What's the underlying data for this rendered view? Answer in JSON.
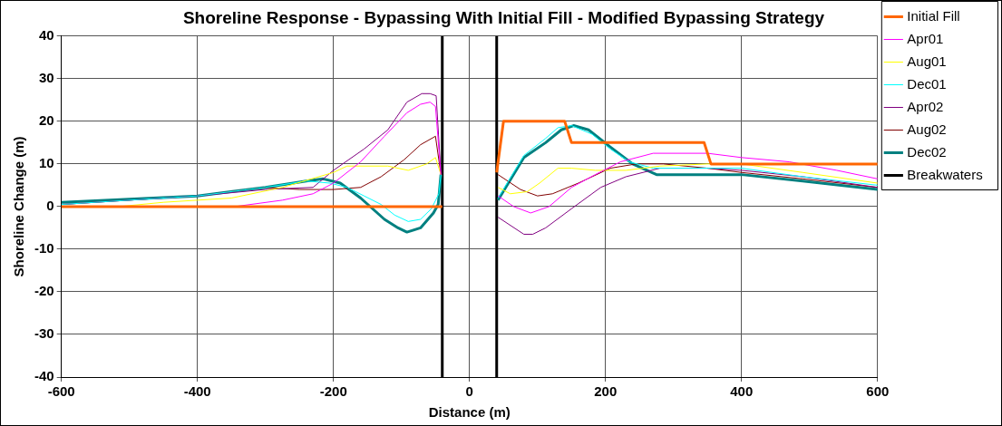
{
  "chart_data": {
    "type": "line",
    "title": "Shoreline Response - Bypassing With Initial Fill - Modified Bypassing Strategy",
    "xlabel": "Distance (m)",
    "ylabel": "Shoreline Change (m)",
    "xlim": [
      -600,
      600
    ],
    "xticks": [
      -600,
      -400,
      -200,
      0,
      200,
      400,
      600
    ],
    "ylim": [
      -40,
      40
    ],
    "yticks": [
      -40,
      -30,
      -20,
      -10,
      0,
      10,
      20,
      30,
      40
    ],
    "grid": true,
    "legend": "right",
    "marker": "none",
    "line_style": "solid",
    "series": [
      {
        "name": "Initial Fill",
        "color": "#ff6600",
        "x": [
          -600,
          -40,
          null,
          40,
          50,
          140,
          150,
          345,
          355,
          600
        ],
        "values": [
          0,
          0,
          null,
          8,
          20,
          20,
          15,
          15,
          10,
          10
        ]
      },
      {
        "name": "Apr01",
        "color": "#ff00ff",
        "x": [
          -600,
          -345,
          -275,
          -230,
          -200,
          -160,
          -125,
          -92,
          -72,
          -58,
          -50,
          -42,
          null,
          42,
          65,
          90,
          117,
          150,
          185,
          222,
          270,
          350,
          400,
          470,
          540,
          600
        ],
        "values": [
          0,
          0,
          1.5,
          3,
          5.5,
          10.5,
          16.5,
          22,
          24,
          24.5,
          23.5,
          7.5,
          null,
          2.5,
          0,
          -1.5,
          0,
          4.5,
          7.5,
          10.5,
          12.5,
          12.5,
          11.5,
          10.5,
          8.5,
          6.5
        ]
      },
      {
        "name": "Aug01",
        "color": "#ffff00",
        "x": [
          -600,
          -515,
          -450,
          -400,
          -350,
          -275,
          -200,
          -180,
          -120,
          -90,
          -63,
          -50,
          -42,
          null,
          42,
          60,
          85,
          103,
          130,
          150,
          185,
          230,
          280,
          350,
          400,
          490,
          600
        ],
        "values": [
          0,
          0,
          1,
          1.5,
          2,
          4.5,
          8,
          9.5,
          9.5,
          8.5,
          10,
          11.5,
          7.5,
          null,
          4.5,
          3,
          3.5,
          5.5,
          9,
          9,
          8.5,
          8.5,
          9.5,
          10,
          10,
          8,
          5.5
        ]
      },
      {
        "name": "Dec01",
        "color": "#00ffff",
        "x": [
          -600,
          -400,
          -300,
          -240,
          -205,
          -180,
          -155,
          -130,
          -110,
          -90,
          -72,
          -56,
          -45,
          -42,
          null,
          42,
          80,
          112,
          130,
          150,
          180,
          207,
          235,
          270,
          350,
          400,
          490,
          600
        ],
        "values": [
          0.5,
          2.5,
          4.5,
          6,
          5.5,
          4.5,
          2.5,
          0.5,
          -2,
          -3.5,
          -3,
          -0.5,
          3,
          7.5,
          null,
          2,
          12,
          16,
          18.5,
          19,
          17,
          13.5,
          10.5,
          9,
          9,
          9,
          7,
          5
        ]
      },
      {
        "name": "Apr02",
        "color": "#800080",
        "x": [
          -600,
          -400,
          -300,
          -230,
          -200,
          -155,
          -120,
          -92,
          -70,
          -58,
          -49,
          -42,
          null,
          42,
          80,
          93,
          112,
          150,
          193,
          230,
          280,
          350,
          400,
          490,
          600
        ],
        "values": [
          0.5,
          2.5,
          4,
          4.5,
          8.5,
          13.5,
          18,
          24.5,
          26.5,
          26.5,
          26,
          7.5,
          null,
          -2.5,
          -6.5,
          -6.5,
          -5,
          -0.5,
          4.5,
          7,
          9,
          9,
          8.5,
          7,
          4.5
        ]
      },
      {
        "name": "Aug02",
        "color": "#800000",
        "x": [
          -600,
          -400,
          -300,
          -250,
          -200,
          -160,
          -130,
          -96,
          -72,
          -50,
          -42,
          null,
          42,
          75,
          100,
          122,
          160,
          207,
          245,
          285,
          350,
          400,
          490,
          600
        ],
        "values": [
          0.5,
          2.5,
          4.5,
          4,
          4,
          4.5,
          7,
          11,
          14.5,
          16.5,
          7.5,
          null,
          7.5,
          4,
          2.5,
          3,
          5.5,
          9,
          10,
          10,
          9,
          8,
          6.5,
          4.5
        ]
      },
      {
        "name": "Dec02",
        "color": "#008080",
        "x": [
          -600,
          -400,
          -300,
          -240,
          -215,
          -190,
          -160,
          -125,
          -105,
          -92,
          -72,
          -53,
          -46,
          -42,
          null,
          42,
          80,
          112,
          135,
          153,
          175,
          207,
          240,
          275,
          360,
          400,
          490,
          600
        ],
        "values": [
          1,
          2.5,
          4.5,
          6,
          6.5,
          5.5,
          2,
          -3,
          -5,
          -6,
          -5,
          -1.5,
          0.5,
          7.5,
          null,
          1.5,
          11.5,
          15,
          18,
          19,
          18,
          14,
          10,
          7.5,
          7.5,
          7.5,
          6,
          4
        ]
      },
      {
        "name": "Breakwaters",
        "color": "#000000",
        "x": [
          -40,
          -40,
          null,
          40,
          40
        ],
        "values": [
          -40,
          40,
          null,
          -40,
          40
        ]
      }
    ]
  }
}
